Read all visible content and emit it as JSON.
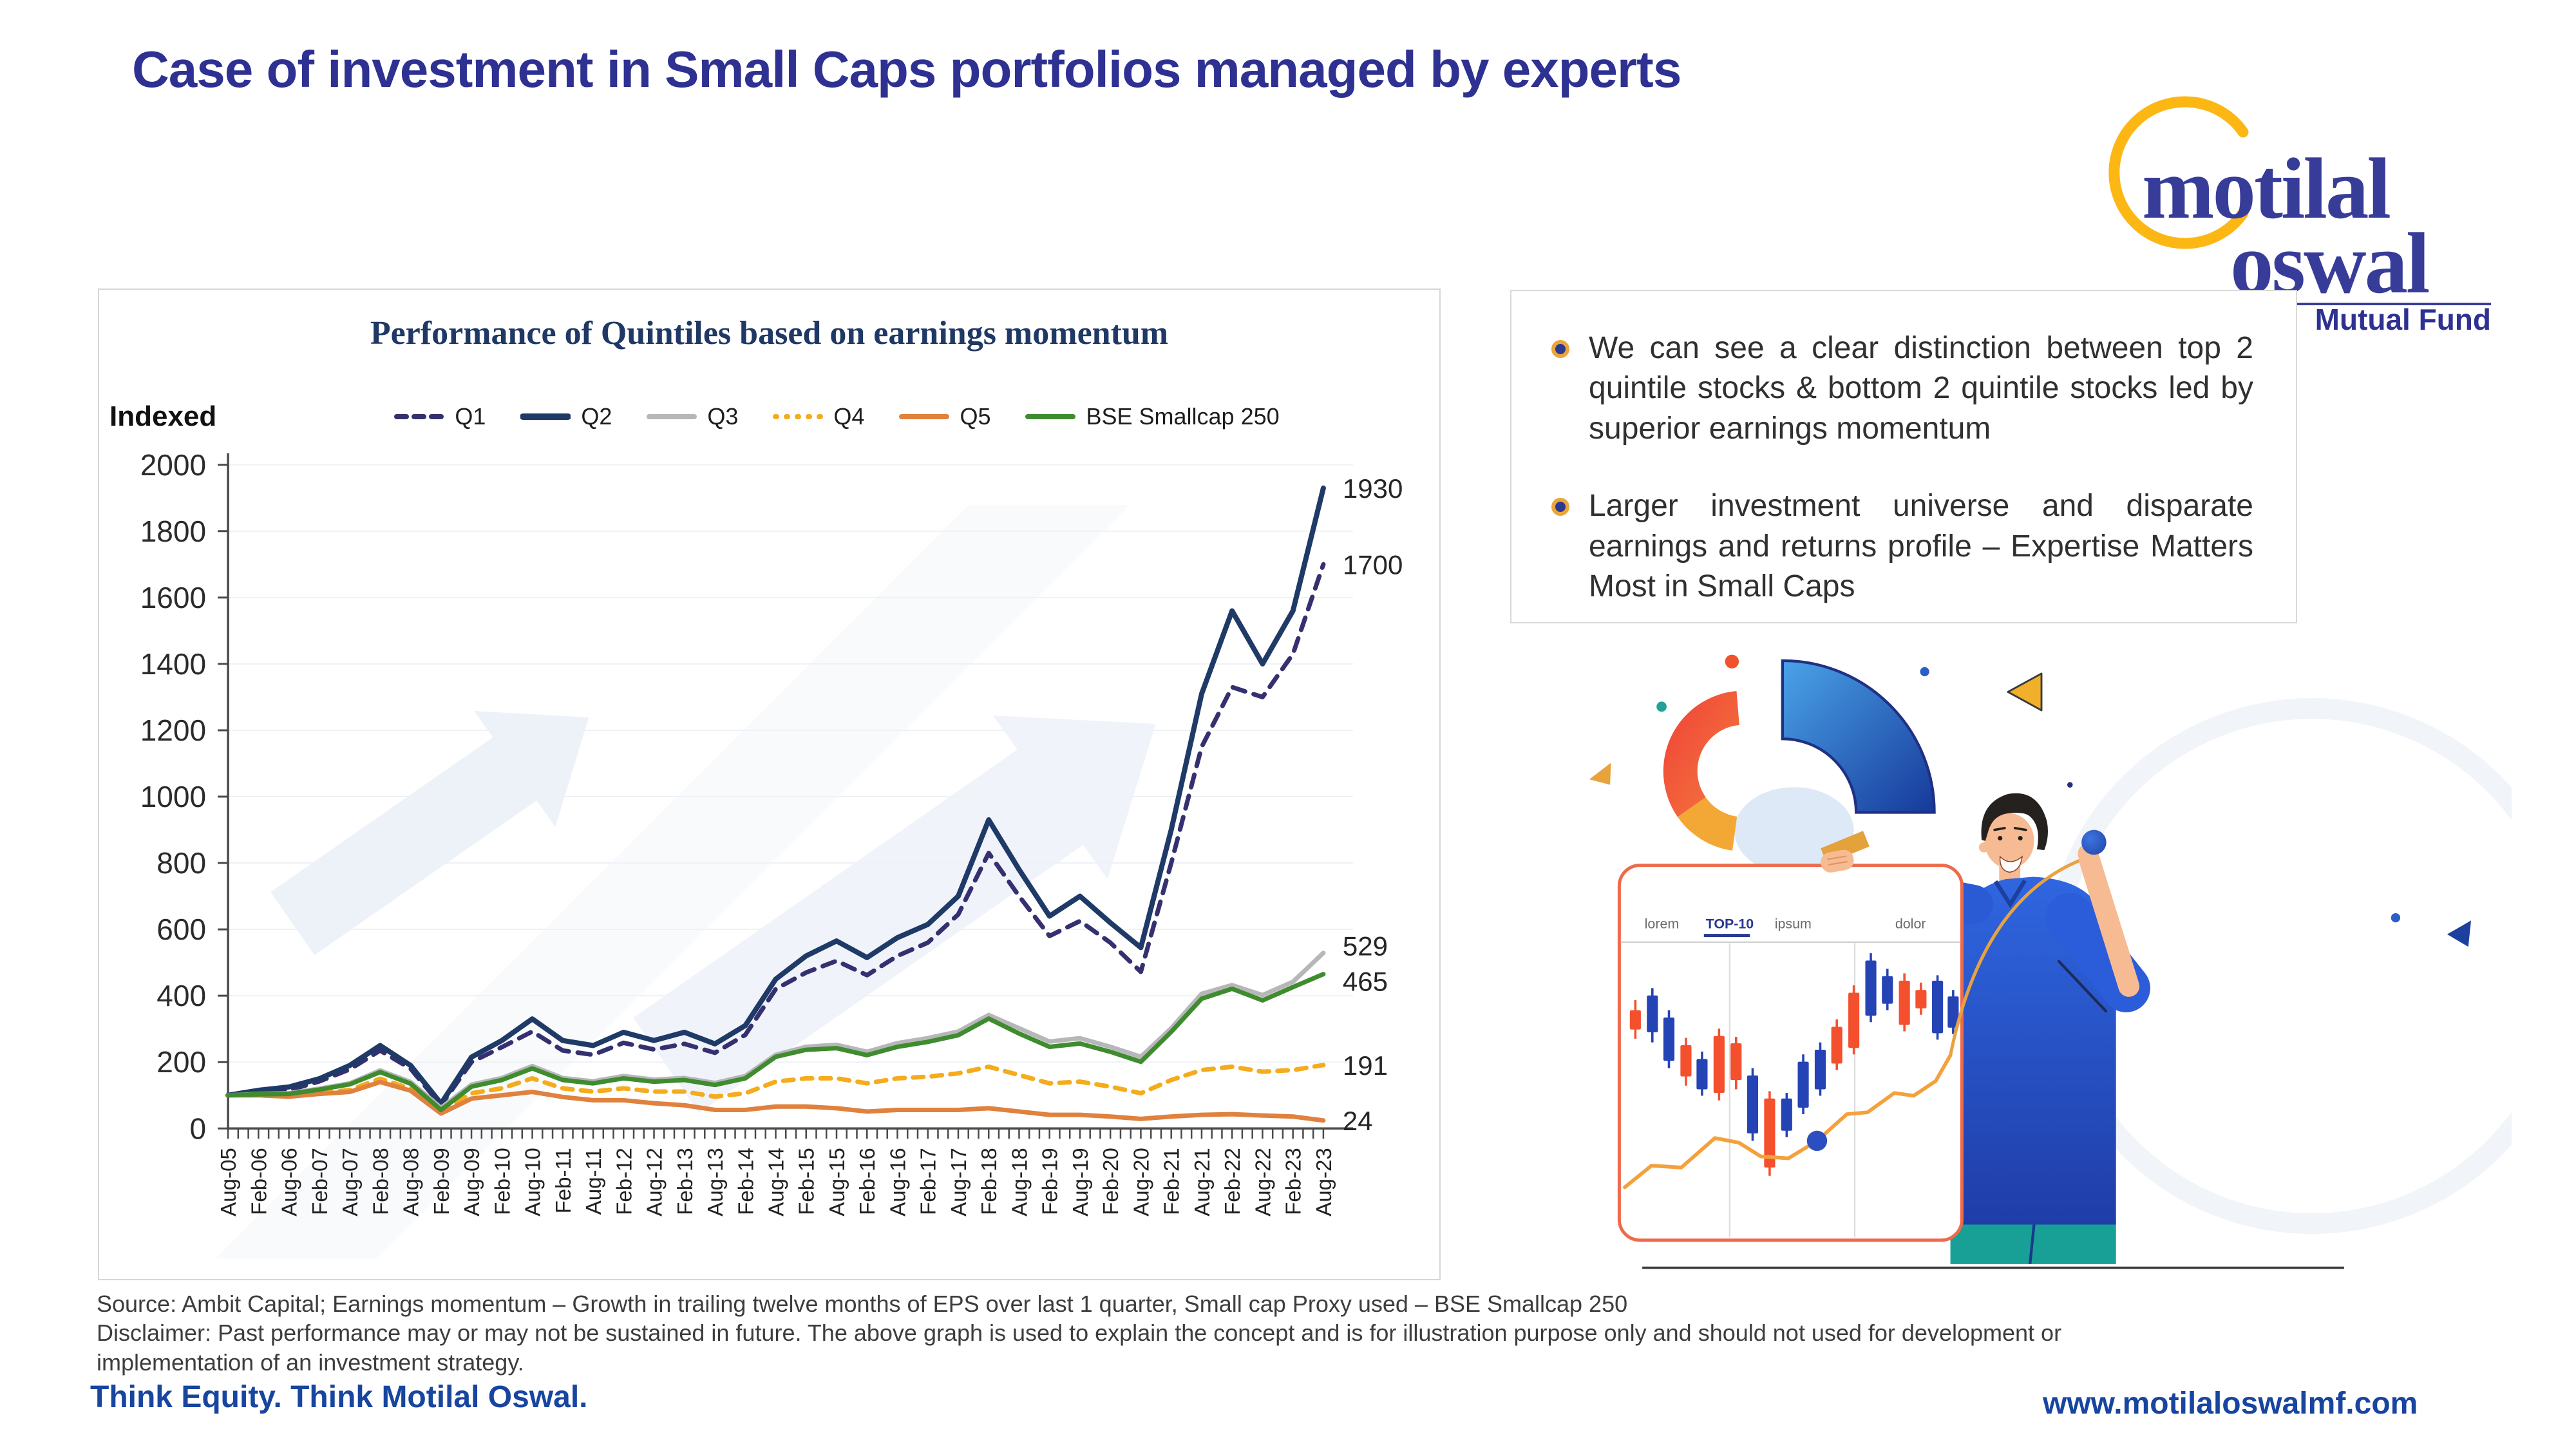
{
  "slide": {
    "title": "Case of investment in Small Caps portfolios managed by experts",
    "title_color": "#2e3192",
    "source_line": "Source: Ambit Capital; Earnings momentum – Growth in trailing twelve months of EPS over last 1 quarter, Small cap Proxy used – BSE Smallcap 250",
    "disclaimer_line": "Disclaimer: Past performance may or may not be sustained in future. The above graph is used to explain the concept and is for illustration purpose only and should not used for development or implementation of an investment strategy.",
    "footer_left": "Think Equity. Think Motilal Oswal.",
    "footer_right": "www.motilaloswalmf.com",
    "footer_color": "#1745a0"
  },
  "logo": {
    "line1": "motilal",
    "line2": "oswal",
    "tagline": "Mutual Fund",
    "navy": "#383c99",
    "gold": "#fdb714"
  },
  "bullets": {
    "items": [
      "We can see a clear distinction between top 2 quintile stocks & bottom 2 quintile stocks led by superior earnings momentum",
      "Larger investment universe and disparate earnings and returns profile – Expertise Matters Most in Small Caps"
    ]
  },
  "illustration": {
    "board_tabs": [
      "lorem",
      "TOP-10",
      "ipsum",
      "dolor"
    ],
    "active_tab": "TOP-10"
  },
  "chart_data": {
    "type": "line",
    "title": "Performance of Quintiles based on earnings momentum",
    "y_axis_label": "Indexed",
    "ylim": [
      0,
      2000
    ],
    "y_ticks": [
      0,
      200,
      400,
      600,
      800,
      1000,
      1200,
      1400,
      1600,
      1800,
      2000
    ],
    "grid": "faint-horizontal",
    "legend_position": "top",
    "x_labels": [
      "Aug-05",
      "Feb-06",
      "Aug-06",
      "Feb-07",
      "Aug-07",
      "Feb-08",
      "Aug-08",
      "Feb-09",
      "Aug-09",
      "Feb-10",
      "Aug-10",
      "Feb-11",
      "Aug-11",
      "Feb-12",
      "Aug-12",
      "Feb-13",
      "Aug-13",
      "Feb-14",
      "Aug-14",
      "Feb-15",
      "Aug-15",
      "Feb-16",
      "Aug-16",
      "Feb-17",
      "Aug-17",
      "Feb-18",
      "Aug-18",
      "Feb-19",
      "Aug-19",
      "Feb-20",
      "Aug-20",
      "Feb-21",
      "Aug-21",
      "Feb-22",
      "Aug-22",
      "Feb-23",
      "Aug-23"
    ],
    "series": [
      {
        "name": "Q1",
        "color": "#35306f",
        "dash": "20 14",
        "legend_dash": "15 12",
        "width": 7,
        "end_label": "1700",
        "values": [
          100,
          110,
          115,
          142,
          178,
          235,
          180,
          70,
          200,
          245,
          292,
          235,
          222,
          258,
          238,
          255,
          228,
          282,
          420,
          470,
          505,
          462,
          520,
          560,
          645,
          830,
          700,
          580,
          625,
          560,
          472,
          800,
          1150,
          1330,
          1300,
          1430,
          1700
        ]
      },
      {
        "name": "Q2",
        "color": "#1f3a67",
        "dash": null,
        "legend_dash": null,
        "width": 8,
        "end_label": "1930",
        "values": [
          100,
          115,
          125,
          150,
          190,
          250,
          190,
          75,
          215,
          265,
          330,
          265,
          250,
          290,
          265,
          290,
          255,
          310,
          450,
          520,
          565,
          515,
          575,
          615,
          700,
          930,
          780,
          640,
          700,
          620,
          545,
          900,
          1310,
          1560,
          1400,
          1560,
          1930
        ]
      },
      {
        "name": "Q3",
        "color": "#b7b7ba",
        "dash": null,
        "legend_dash": null,
        "width": 7,
        "end_label": "529",
        "values": [
          100,
          104,
          106,
          120,
          136,
          175,
          140,
          62,
          132,
          152,
          188,
          152,
          142,
          158,
          147,
          152,
          137,
          158,
          222,
          246,
          252,
          231,
          257,
          272,
          292,
          342,
          302,
          262,
          272,
          246,
          216,
          302,
          406,
          432,
          402,
          442,
          529
        ]
      },
      {
        "name": "Q4",
        "color": "#f4ac1d",
        "dash": "16 13",
        "legend_dash": "2 15",
        "width": 7,
        "end_label": "191",
        "values": [
          100,
          100,
          96,
          106,
          116,
          150,
          120,
          50,
          106,
          121,
          151,
          121,
          111,
          121,
          111,
          111,
          96,
          106,
          141,
          151,
          151,
          136,
          151,
          156,
          166,
          186,
          161,
          136,
          141,
          126,
          106,
          146,
          176,
          186,
          171,
          176,
          191
        ]
      },
      {
        "name": "Q5",
        "color": "#e0813e",
        "dash": null,
        "legend_dash": null,
        "width": 7,
        "end_label": "24",
        "values": [
          100,
          100,
          96,
          104,
          110,
          140,
          114,
          45,
          90,
          100,
          110,
          95,
          85,
          85,
          76,
          70,
          56,
          56,
          66,
          66,
          61,
          51,
          56,
          56,
          56,
          61,
          51,
          41,
          41,
          36,
          29,
          36,
          41,
          43,
          39,
          36,
          24
        ]
      },
      {
        "name": "BSE Smallcap 250",
        "color": "#3f8c2f",
        "dash": null,
        "legend_dash": null,
        "width": 7,
        "end_label": "465",
        "values": [
          100,
          103,
          104,
          117,
          133,
          170,
          135,
          56,
          126,
          146,
          181,
          146,
          136,
          151,
          141,
          146,
          131,
          151,
          216,
          237,
          242,
          221,
          246,
          261,
          281,
          331,
          286,
          246,
          256,
          231,
          201,
          291,
          391,
          421,
          386,
          426,
          465
        ]
      }
    ]
  }
}
